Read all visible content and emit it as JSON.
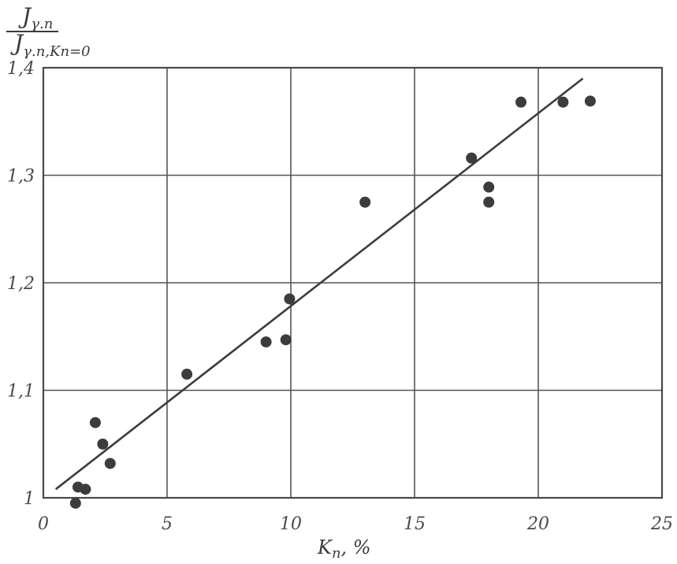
{
  "chart_data": {
    "type": "scatter",
    "title": "",
    "xlabel": "Kn, %",
    "ylabel": "Jγ.n / Jγ.n,Kn=0",
    "ylabel_parts": {
      "numerator_main": "J",
      "numerator_sub": "γ.n",
      "denominator_main": "J",
      "denominator_sub": "γ.n,Kn=0"
    },
    "xlabel_parts": {
      "main": "K",
      "sub": "n",
      "unit": ", %"
    },
    "xlim": [
      0,
      25
    ],
    "ylim": [
      1.0,
      1.4
    ],
    "x_ticks": [
      "0",
      "5",
      "10",
      "15",
      "20",
      "25"
    ],
    "y_ticks": [
      "1",
      "1,1",
      "1,2",
      "1,3",
      "1,4"
    ],
    "grid": true,
    "colors": {
      "ink": "#4a4a4a",
      "grid": "#555555",
      "marker": "#3c3c3c"
    },
    "points": [
      {
        "x": 1.3,
        "y": 0.995
      },
      {
        "x": 1.4,
        "y": 1.01
      },
      {
        "x": 1.7,
        "y": 1.008
      },
      {
        "x": 2.1,
        "y": 1.07
      },
      {
        "x": 2.4,
        "y": 1.05
      },
      {
        "x": 2.7,
        "y": 1.032
      },
      {
        "x": 5.8,
        "y": 1.115
      },
      {
        "x": 9.0,
        "y": 1.145
      },
      {
        "x": 9.8,
        "y": 1.147
      },
      {
        "x": 9.95,
        "y": 1.185
      },
      {
        "x": 13.0,
        "y": 1.275
      },
      {
        "x": 17.3,
        "y": 1.316
      },
      {
        "x": 18.0,
        "y": 1.289
      },
      {
        "x": 18.0,
        "y": 1.275
      },
      {
        "x": 19.3,
        "y": 1.368
      },
      {
        "x": 21.0,
        "y": 1.368
      },
      {
        "x": 22.1,
        "y": 1.369
      }
    ],
    "fit_line": {
      "x": [
        0.5,
        21.8
      ],
      "y": [
        1.008,
        1.39
      ]
    }
  }
}
